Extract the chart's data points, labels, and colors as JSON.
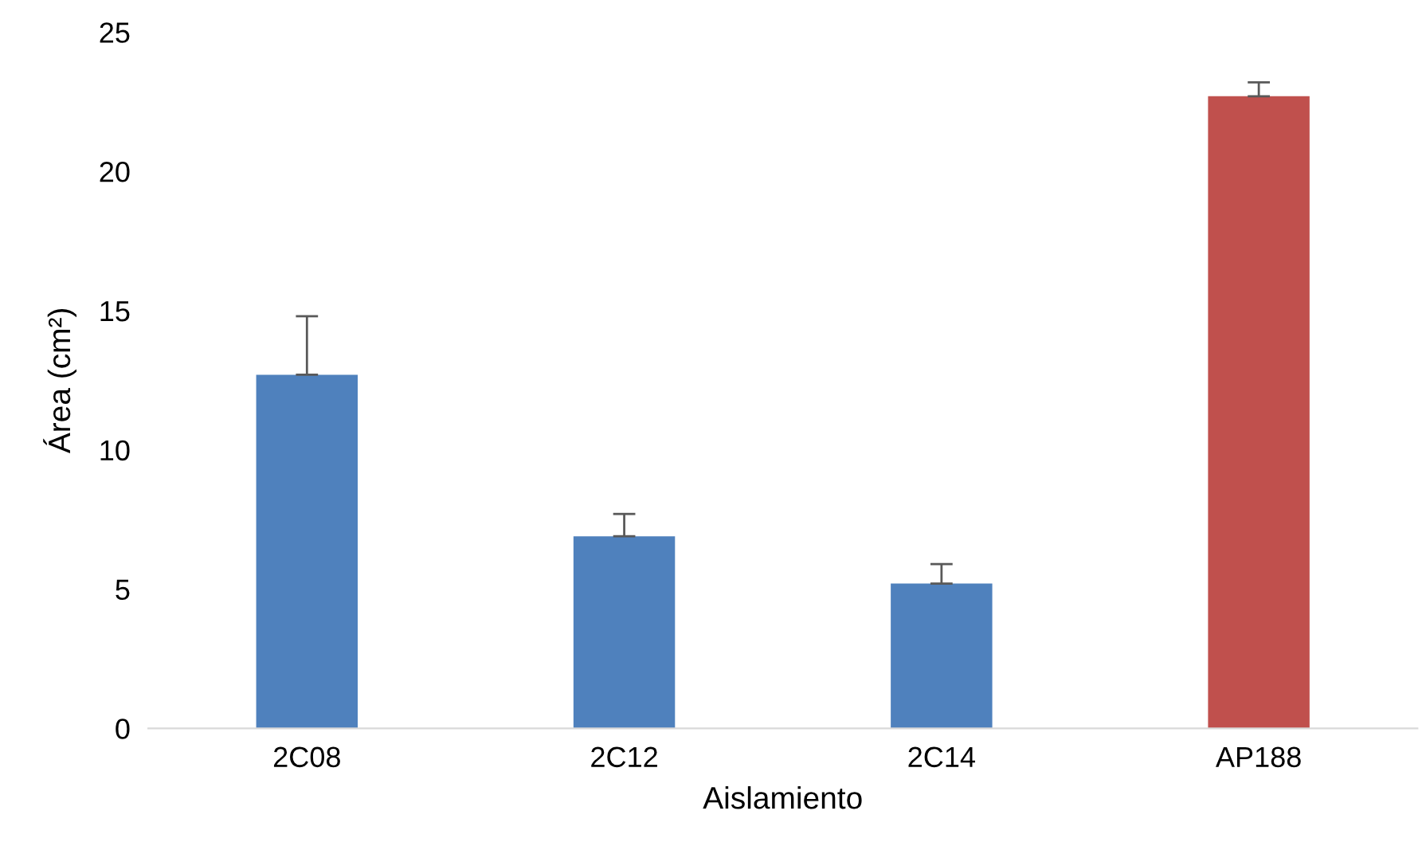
{
  "chart_data": {
    "type": "bar",
    "xlabel": "Aislamiento",
    "ylabel": "Área (cm²)",
    "categories": [
      "2C08",
      "2C12",
      "2C14",
      "AP188"
    ],
    "values": [
      12.7,
      6.9,
      5.2,
      22.7
    ],
    "errors": [
      [
        12.7,
        14.8
      ],
      [
        6.9,
        7.7
      ],
      [
        5.2,
        5.9
      ],
      [
        22.7,
        23.2
      ]
    ],
    "colors": [
      "#4f81bd",
      "#4f81bd",
      "#4f81bd",
      "#c0504d"
    ],
    "ylim": [
      0,
      25
    ],
    "yticks": [
      0,
      5,
      10,
      15,
      20,
      25
    ],
    "grid": false
  }
}
